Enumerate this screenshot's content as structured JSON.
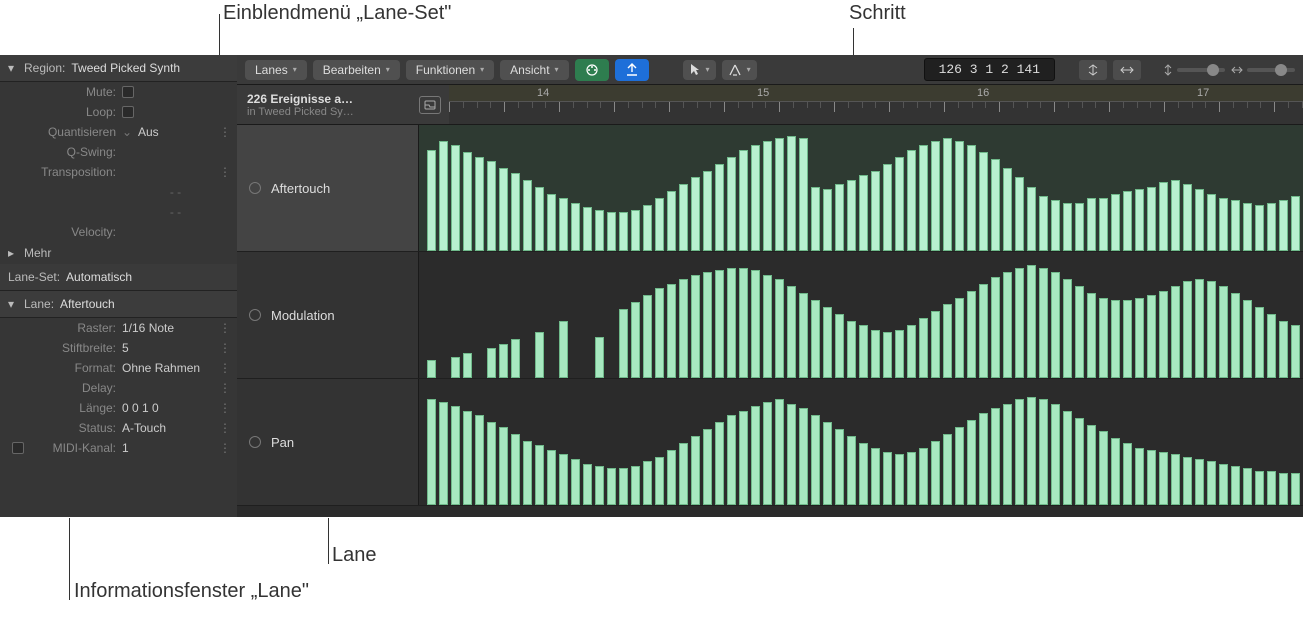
{
  "annotations": {
    "laneSetMenu": "Einblendmenü „Lane-Set\"",
    "step": "Schritt",
    "lane": "Lane",
    "laneInspector": "Informationsfenster „Lane\""
  },
  "inspector": {
    "region": {
      "label": "Region:",
      "value": "Tweed Picked Synth"
    },
    "mute": "Mute:",
    "loop": "Loop:",
    "quantize": {
      "label": "Quantisieren",
      "value": "Aus"
    },
    "qswing": "Q-Swing:",
    "transposition": "Transposition:",
    "velocity": "Velocity:",
    "more": "Mehr",
    "laneSet": {
      "label": "Lane-Set:",
      "value": "Automatisch"
    },
    "lane": {
      "label": "Lane:",
      "value": "Aftertouch"
    },
    "grid": {
      "label": "Raster:",
      "value": "1/16 Note"
    },
    "penWidth": {
      "label": "Stiftbreite:",
      "value": "5"
    },
    "format": {
      "label": "Format:",
      "value": "Ohne Rahmen"
    },
    "delay": {
      "label": "Delay:",
      "value": ""
    },
    "length": {
      "label": "Länge:",
      "value": "0 0 1   0"
    },
    "status": {
      "label": "Status:",
      "value": "A-Touch"
    },
    "midiCh": {
      "label": "MIDI-Kanal:",
      "value": "1"
    },
    "dashes": "- -"
  },
  "toolbar": {
    "lanes": "Lanes",
    "edit": "Bearbeiten",
    "functions": "Funktionen",
    "view": "Ansicht",
    "lcd": "126   3 1 2 141"
  },
  "events": {
    "title": "226 Ereignisse a…",
    "sub": "in Tweed Picked Sy…"
  },
  "ruler": {
    "start": 13.6,
    "labels": [
      14,
      15,
      16,
      17
    ],
    "pxPerBar": 220
  },
  "colors": {
    "step": "#a7e8c0",
    "stepBorder": "#6fb98a",
    "bgDark": "#2b2b2b",
    "panel": "#363636"
  },
  "lanes": [
    {
      "name": "Aftertouch",
      "selected": true,
      "values": [
        88,
        96,
        92,
        86,
        82,
        78,
        72,
        68,
        62,
        56,
        50,
        46,
        42,
        38,
        36,
        34,
        34,
        36,
        40,
        46,
        52,
        58,
        64,
        70,
        76,
        82,
        88,
        92,
        96,
        98,
        100,
        98,
        56,
        54,
        58,
        62,
        66,
        70,
        76,
        82,
        88,
        92,
        96,
        98,
        96,
        92,
        86,
        80,
        72,
        64,
        56,
        48,
        44,
        42,
        42,
        46,
        46,
        50,
        52,
        54,
        56,
        60,
        62,
        58,
        54,
        50,
        46,
        44,
        42,
        40,
        42,
        44,
        48
      ]
    },
    {
      "name": "Modulation",
      "selected": false,
      "values": [
        16,
        0,
        18,
        22,
        0,
        26,
        30,
        34,
        0,
        40,
        0,
        50,
        0,
        0,
        36,
        0,
        60,
        66,
        72,
        78,
        82,
        86,
        90,
        92,
        94,
        96,
        96,
        94,
        90,
        86,
        80,
        74,
        68,
        62,
        56,
        50,
        46,
        42,
        40,
        42,
        46,
        52,
        58,
        64,
        70,
        76,
        82,
        88,
        92,
        96,
        98,
        96,
        92,
        86,
        80,
        74,
        70,
        68,
        68,
        70,
        72,
        76,
        80,
        84,
        86,
        84,
        80,
        74,
        68,
        62,
        56,
        50,
        46
      ]
    },
    {
      "name": "Pan",
      "selected": false,
      "values": [
        92,
        90,
        86,
        82,
        78,
        72,
        68,
        62,
        56,
        52,
        48,
        44,
        40,
        36,
        34,
        32,
        32,
        34,
        38,
        42,
        48,
        54,
        60,
        66,
        72,
        78,
        82,
        86,
        90,
        92,
        88,
        84,
        78,
        72,
        66,
        60,
        54,
        50,
        46,
        44,
        46,
        50,
        56,
        62,
        68,
        74,
        80,
        84,
        88,
        92,
        94,
        92,
        88,
        82,
        76,
        70,
        64,
        58,
        54,
        50,
        48,
        46,
        44,
        42,
        40,
        38,
        36,
        34,
        32,
        30,
        30,
        28,
        28
      ]
    }
  ]
}
